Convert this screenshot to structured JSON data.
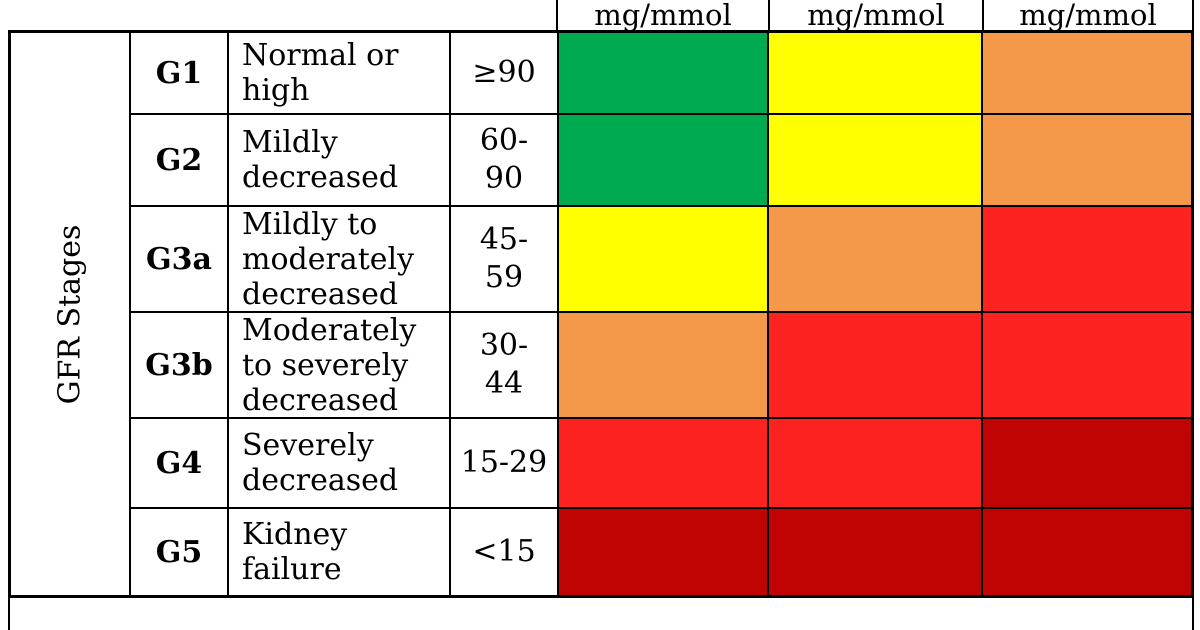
{
  "chart_data": {
    "type": "heatmap",
    "title": "",
    "row_axis_label": "GFR Stages",
    "column_headers": [
      "mg/mmol",
      "mg/mmol",
      "mg/mmol"
    ],
    "rows": [
      {
        "code": "G1",
        "description": "Normal or\nhigh",
        "range": "≥90"
      },
      {
        "code": "G2",
        "description": "Mildly\ndecreased",
        "range": "60-\n90"
      },
      {
        "code": "G3a",
        "description": "Mildly to\nmoderately\ndecreased",
        "range": "45-\n59"
      },
      {
        "code": "G3b",
        "description": "Moderately\nto severely\ndecreased",
        "range": "30-\n44"
      },
      {
        "code": "G4",
        "description": "Severely\ndecreased",
        "range": "15-29"
      },
      {
        "code": "G5",
        "description": "Kidney\nfailure",
        "range": "<15"
      }
    ],
    "cells": [
      [
        "green",
        "yellow",
        "orange"
      ],
      [
        "green",
        "yellow",
        "orange"
      ],
      [
        "yellow",
        "orange",
        "red"
      ],
      [
        "orange",
        "red",
        "red"
      ],
      [
        "red",
        "red",
        "dark_red"
      ],
      [
        "dark_red",
        "dark_red",
        "dark_red"
      ]
    ],
    "risk_colors": {
      "green": "#00AB50",
      "yellow": "#FFFF00",
      "orange": "#F4984A",
      "red": "#FB221F",
      "dark_red": "#C00404"
    },
    "border_color": "#000000",
    "background": "#ffffff"
  }
}
